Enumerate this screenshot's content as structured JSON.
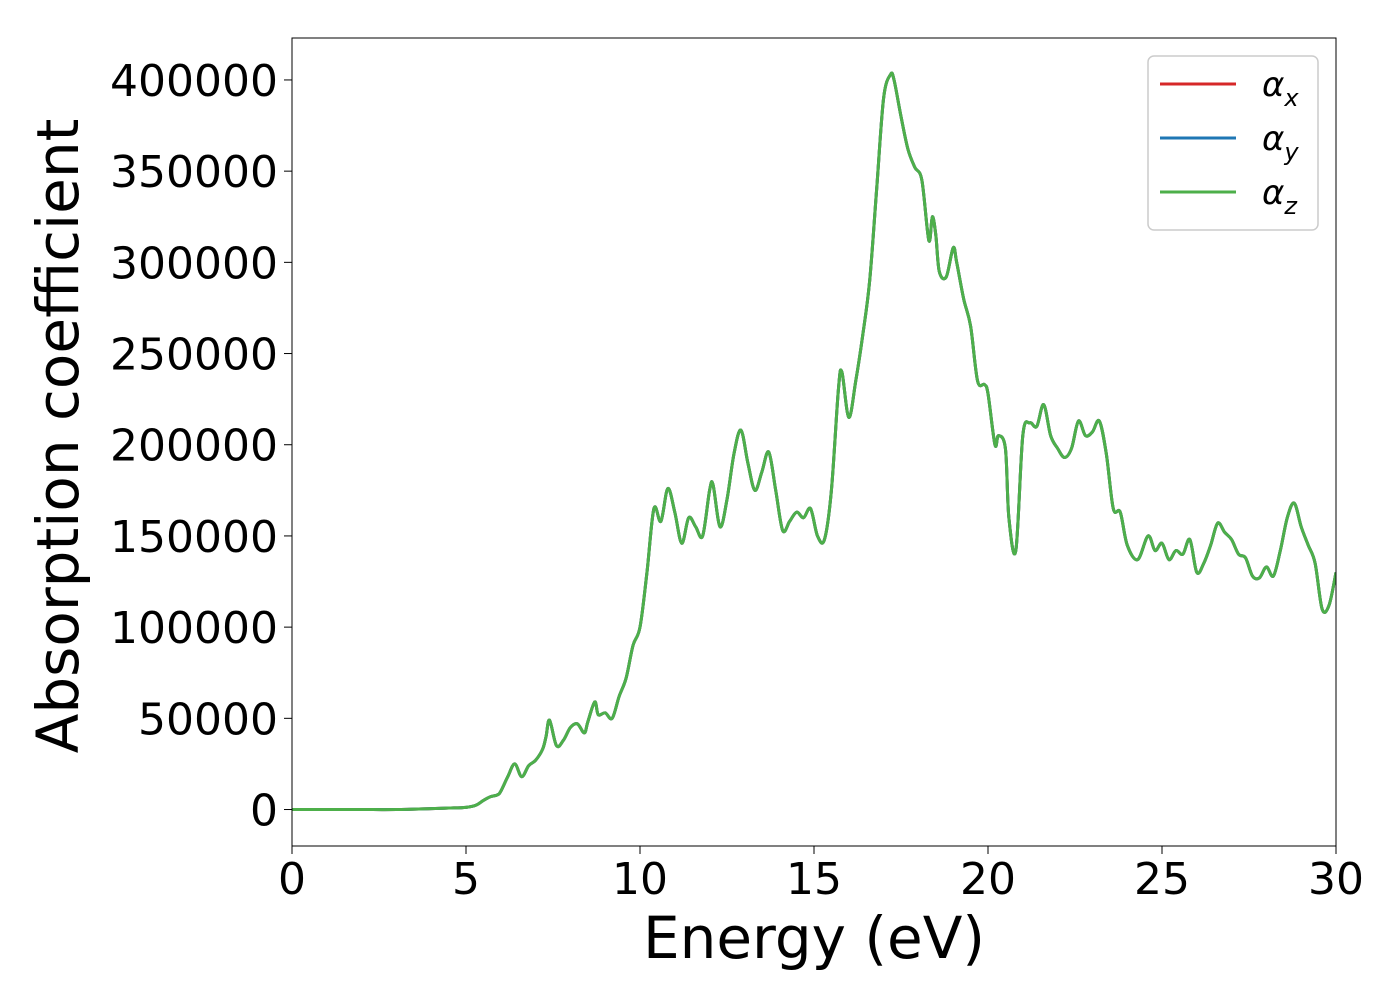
{
  "chart_data": {
    "type": "line",
    "title": "",
    "xlabel": "Energy (eV)",
    "ylabel": "Absorption coefficient",
    "xlim": [
      0,
      30
    ],
    "ylim": [
      -20000,
      423000
    ],
    "xticks": [
      0,
      5,
      10,
      15,
      20,
      25,
      30
    ],
    "xtick_labels": [
      "0",
      "5",
      "10",
      "15",
      "20",
      "25",
      "30"
    ],
    "yticks": [
      0,
      50000,
      100000,
      150000,
      200000,
      250000,
      300000,
      350000,
      400000
    ],
    "ytick_labels": [
      "0",
      "50000",
      "100000",
      "150000",
      "200000",
      "250000",
      "300000",
      "350000",
      "400000"
    ],
    "grid": false,
    "legend_position": "top-right",
    "series": [
      {
        "name": "α_x",
        "label_main": "α",
        "label_sub": "x",
        "color": "#d62728"
      },
      {
        "name": "α_y",
        "label_main": "α",
        "label_sub": "y",
        "color": "#1f77b4"
      },
      {
        "name": "α_z",
        "label_main": "α",
        "label_sub": "z",
        "color": "#4daf4a"
      }
    ],
    "x": [
      0,
      1,
      2,
      3,
      4,
      4.5,
      5,
      5.3,
      5.5,
      5.7,
      5.9,
      6.0,
      6.2,
      6.4,
      6.6,
      6.8,
      7.0,
      7.2,
      7.3,
      7.4,
      7.6,
      7.8,
      8.0,
      8.2,
      8.4,
      8.5,
      8.7,
      8.8,
      9.0,
      9.2,
      9.4,
      9.6,
      9.8,
      10.0,
      10.2,
      10.4,
      10.6,
      10.8,
      11.0,
      11.2,
      11.4,
      11.6,
      11.8,
      12.0,
      12.1,
      12.3,
      12.5,
      12.7,
      12.9,
      13.1,
      13.3,
      13.5,
      13.7,
      13.9,
      14.1,
      14.3,
      14.5,
      14.7,
      14.9,
      15.1,
      15.3,
      15.5,
      15.7,
      15.8,
      16.0,
      16.2,
      16.4,
      16.6,
      16.8,
      17.0,
      17.2,
      17.3,
      17.5,
      17.7,
      17.9,
      18.1,
      18.3,
      18.4,
      18.5,
      18.6,
      18.8,
      19.0,
      19.1,
      19.3,
      19.5,
      19.7,
      19.9,
      20.0,
      20.2,
      20.3,
      20.5,
      20.6,
      20.8,
      21.0,
      21.2,
      21.4,
      21.6,
      21.8,
      22.0,
      22.2,
      22.4,
      22.6,
      22.8,
      23.0,
      23.2,
      23.4,
      23.6,
      23.8,
      24.0,
      24.3,
      24.6,
      24.8,
      25.0,
      25.2,
      25.4,
      25.6,
      25.8,
      26.0,
      26.2,
      26.4,
      26.6,
      26.8,
      27.0,
      27.2,
      27.4,
      27.6,
      27.8,
      28.0,
      28.2,
      28.4,
      28.6,
      28.8,
      29.0,
      29.2,
      29.4,
      29.6,
      29.8,
      30.0
    ],
    "values": [
      0,
      0,
      0,
      0,
      500,
      800,
      1200,
      2500,
      5000,
      7000,
      8000,
      10000,
      18000,
      25000,
      18000,
      24000,
      27000,
      33000,
      40000,
      49000,
      35000,
      38000,
      45000,
      47000,
      42000,
      48000,
      59000,
      52000,
      53000,
      50000,
      62000,
      72000,
      90000,
      100000,
      130000,
      165000,
      158000,
      176000,
      163000,
      146000,
      160000,
      155000,
      150000,
      175000,
      178000,
      155000,
      170000,
      195000,
      208000,
      190000,
      175000,
      185000,
      196000,
      175000,
      153000,
      158000,
      163000,
      160000,
      165000,
      150000,
      148000,
      175000,
      230000,
      240000,
      215000,
      235000,
      260000,
      290000,
      340000,
      390000,
      403000,
      400000,
      380000,
      362000,
      352000,
      345000,
      312000,
      325000,
      315000,
      295000,
      292000,
      308000,
      300000,
      280000,
      265000,
      235000,
      233000,
      228000,
      200000,
      205000,
      198000,
      160000,
      142000,
      205000,
      212000,
      210000,
      222000,
      205000,
      198000,
      193000,
      198000,
      213000,
      205000,
      207000,
      213000,
      195000,
      165000,
      163000,
      145000,
      137000,
      150000,
      142000,
      146000,
      137000,
      142000,
      140000,
      148000,
      130000,
      135000,
      145000,
      157000,
      152000,
      148000,
      140000,
      138000,
      128000,
      127000,
      133000,
      128000,
      142000,
      160000,
      168000,
      155000,
      145000,
      135000,
      110000,
      112000,
      130000
    ]
  }
}
